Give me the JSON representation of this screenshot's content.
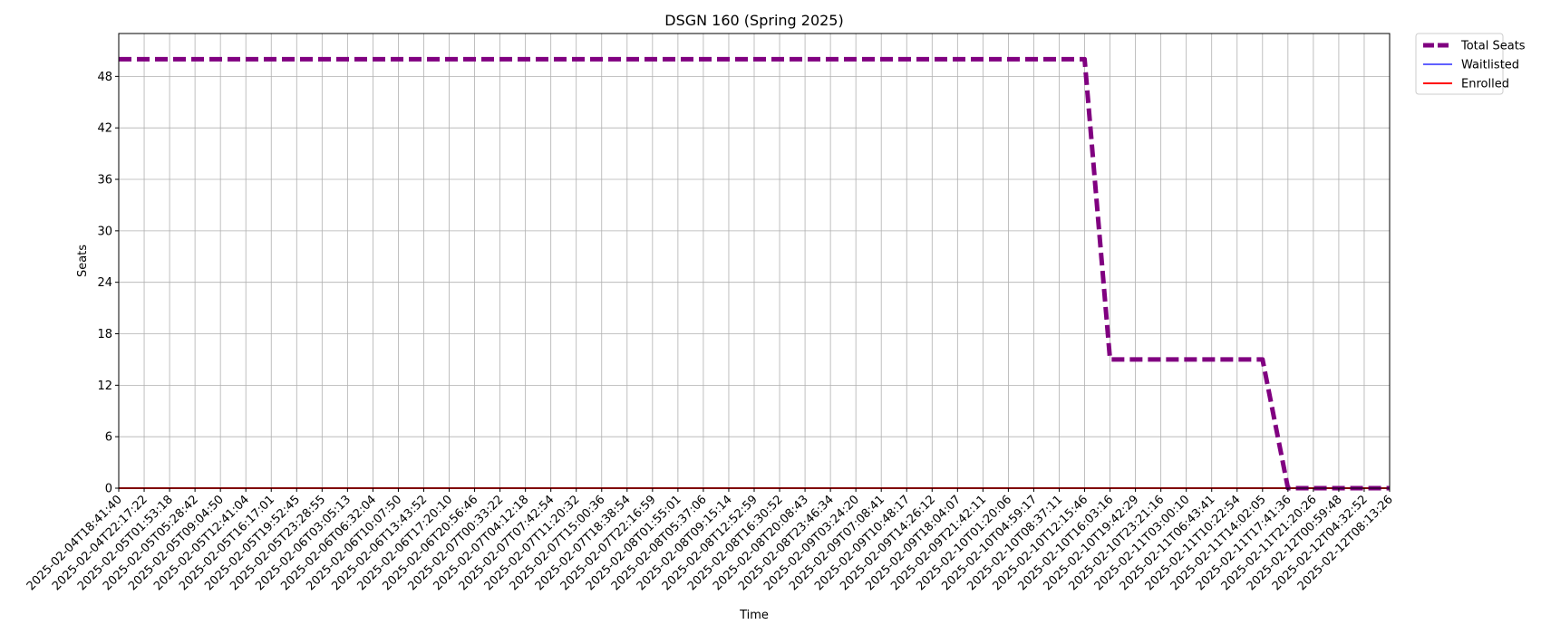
{
  "chart_data": {
    "type": "line",
    "title": "DSGN 160 (Spring 2025)",
    "xlabel": "Time",
    "ylabel": "Seats",
    "ylim": [
      0,
      53
    ],
    "yticks": [
      0,
      6,
      12,
      18,
      24,
      30,
      36,
      42,
      48
    ],
    "grid": true,
    "legend_position": "outside-top-right",
    "x": [
      "2025-02-04T18:41:40",
      "2025-02-04T22:17:22",
      "2025-02-05T01:53:18",
      "2025-02-05T05:28:42",
      "2025-02-05T09:04:50",
      "2025-02-05T12:41:04",
      "2025-02-05T16:17:01",
      "2025-02-05T19:52:45",
      "2025-02-05T23:28:55",
      "2025-02-06T03:05:13",
      "2025-02-06T06:32:04",
      "2025-02-06T10:07:50",
      "2025-02-06T13:43:52",
      "2025-02-06T17:20:10",
      "2025-02-06T20:56:46",
      "2025-02-07T00:33:22",
      "2025-02-07T04:12:18",
      "2025-02-07T07:42:54",
      "2025-02-07T11:20:32",
      "2025-02-07T15:00:36",
      "2025-02-07T18:38:54",
      "2025-02-07T22:16:59",
      "2025-02-08T01:55:01",
      "2025-02-08T05:37:06",
      "2025-02-08T09:15:14",
      "2025-02-08T12:52:59",
      "2025-02-08T16:30:52",
      "2025-02-08T20:08:43",
      "2025-02-08T23:46:34",
      "2025-02-09T03:24:20",
      "2025-02-09T07:08:41",
      "2025-02-09T10:48:17",
      "2025-02-09T14:26:12",
      "2025-02-09T18:04:07",
      "2025-02-09T21:42:11",
      "2025-02-10T01:20:06",
      "2025-02-10T04:59:17",
      "2025-02-10T08:37:11",
      "2025-02-10T12:15:46",
      "2025-02-10T16:03:16",
      "2025-02-10T19:42:29",
      "2025-02-10T23:21:16",
      "2025-02-11T03:00:10",
      "2025-02-11T06:43:41",
      "2025-02-11T10:22:54",
      "2025-02-11T14:02:05",
      "2025-02-11T17:41:36",
      "2025-02-11T21:20:26",
      "2025-02-12T00:59:48",
      "2025-02-12T04:32:52",
      "2025-02-12T08:13:26"
    ],
    "series": [
      {
        "name": "Total Seats",
        "color": "#800080",
        "style": "dashed",
        "values": [
          50,
          50,
          50,
          50,
          50,
          50,
          50,
          50,
          50,
          50,
          50,
          50,
          50,
          50,
          50,
          50,
          50,
          50,
          50,
          50,
          50,
          50,
          50,
          50,
          50,
          50,
          50,
          50,
          50,
          50,
          50,
          50,
          50,
          50,
          50,
          50,
          50,
          50,
          50,
          15,
          15,
          15,
          15,
          15,
          15,
          15,
          0,
          0,
          0,
          0,
          0
        ]
      },
      {
        "name": "Waitlisted",
        "color": "#0000ff",
        "style": "solid",
        "values": [
          0,
          0,
          0,
          0,
          0,
          0,
          0,
          0,
          0,
          0,
          0,
          0,
          0,
          0,
          0,
          0,
          0,
          0,
          0,
          0,
          0,
          0,
          0,
          0,
          0,
          0,
          0,
          0,
          0,
          0,
          0,
          0,
          0,
          0,
          0,
          0,
          0,
          0,
          0,
          0,
          0,
          0,
          0,
          0,
          0,
          0,
          0,
          0,
          0,
          0,
          0
        ]
      },
      {
        "name": "Enrolled",
        "color": "#ff0000",
        "style": "solid",
        "values": [
          0,
          0,
          0,
          0,
          0,
          0,
          0,
          0,
          0,
          0,
          0,
          0,
          0,
          0,
          0,
          0,
          0,
          0,
          0,
          0,
          0,
          0,
          0,
          0,
          0,
          0,
          0,
          0,
          0,
          0,
          0,
          0,
          0,
          0,
          0,
          0,
          0,
          0,
          0,
          0,
          0,
          0,
          0,
          0,
          0,
          0,
          0,
          0,
          0,
          0,
          0
        ]
      }
    ]
  }
}
